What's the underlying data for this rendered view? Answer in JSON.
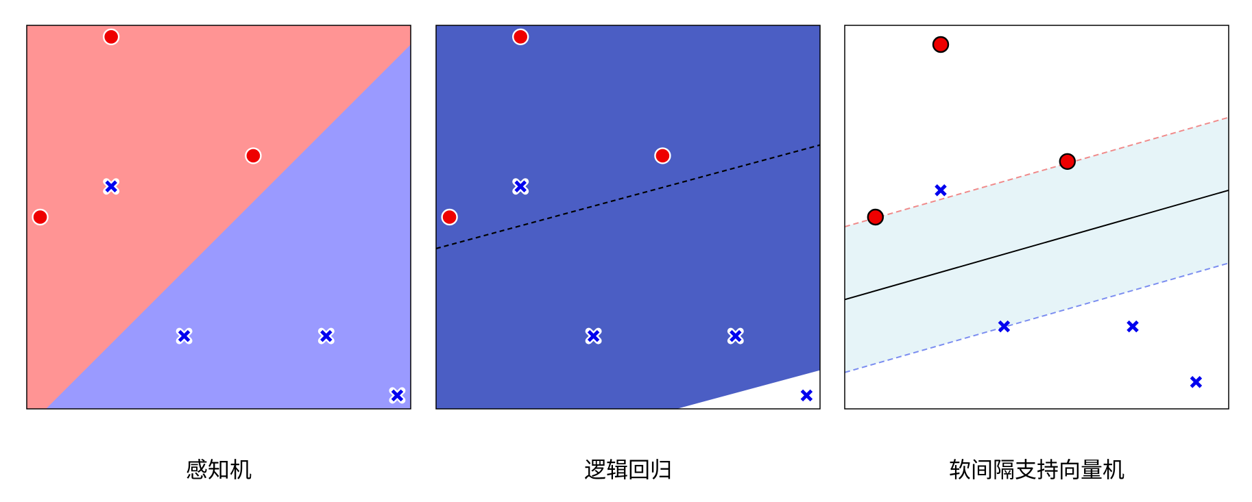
{
  "colors": {
    "class_pos": "#ee0000",
    "class_neg": "#0000ee",
    "perceptron_pos_region": "#ff9494",
    "perceptron_neg_region": "#9a9aff",
    "lr_high": "#b8203a",
    "lr_mid": "#f2f0ef",
    "lr_low": "#4b5ec4",
    "svm_margin_fill": "#e6f4f8",
    "svm_pos_margin_line": "#f08a8a",
    "svm_neg_margin_line": "#7a8cf0",
    "boundary": "#000000"
  },
  "chart_data": [
    {
      "type": "scatter",
      "title": "感知机",
      "xlim": [
        0,
        10
      ],
      "ylim": [
        0,
        10
      ],
      "grid": false,
      "background": "two-region classification",
      "decision_boundary": {
        "slope": 1.0,
        "intercept": -0.5
      },
      "series": [
        {
          "marker": "circle",
          "class": "positive",
          "x": [
            2.2,
            0.35,
            5.9
          ],
          "y": [
            9.7,
            5.0,
            6.6
          ]
        },
        {
          "marker": "x",
          "class": "negative",
          "x": [
            2.2,
            4.1,
            7.8,
            9.65
          ],
          "y": [
            5.8,
            1.9,
            1.9,
            0.35
          ]
        }
      ]
    },
    {
      "type": "scatter",
      "title": "逻辑回归",
      "xlim": [
        0,
        10
      ],
      "ylim": [
        0,
        10
      ],
      "grid": false,
      "background": "probability contour (red high, blue low)",
      "decision_boundary": {
        "slope": 0.27,
        "intercept": 4.18,
        "style": "dashed"
      },
      "series": [
        {
          "marker": "circle",
          "class": "positive",
          "x": [
            2.2,
            0.35,
            5.9
          ],
          "y": [
            9.7,
            5.0,
            6.6
          ]
        },
        {
          "marker": "x",
          "class": "negative",
          "x": [
            2.2,
            4.1,
            7.8,
            9.65
          ],
          "y": [
            5.8,
            1.9,
            1.9,
            0.35
          ]
        }
      ]
    },
    {
      "type": "scatter",
      "title": "软间隔支持向量机",
      "xlim": [
        0,
        10
      ],
      "ylim": [
        0,
        10
      ],
      "grid": false,
      "background": "white with shaded margin band",
      "decision_boundary": {
        "slope": 0.285,
        "intercept": 2.85,
        "style": "solid"
      },
      "margin_upper": {
        "slope": 0.285,
        "intercept": 4.75,
        "style": "dashed"
      },
      "margin_lower": {
        "slope": 0.285,
        "intercept": 0.95,
        "style": "dashed"
      },
      "series": [
        {
          "marker": "circle",
          "class": "positive",
          "x": [
            2.5,
            0.8,
            5.8
          ],
          "y": [
            9.5,
            5.0,
            6.45
          ]
        },
        {
          "marker": "x",
          "class": "negative",
          "x": [
            2.5,
            4.15,
            7.5,
            9.15
          ],
          "y": [
            5.7,
            2.15,
            2.15,
            0.7
          ]
        }
      ]
    }
  ]
}
